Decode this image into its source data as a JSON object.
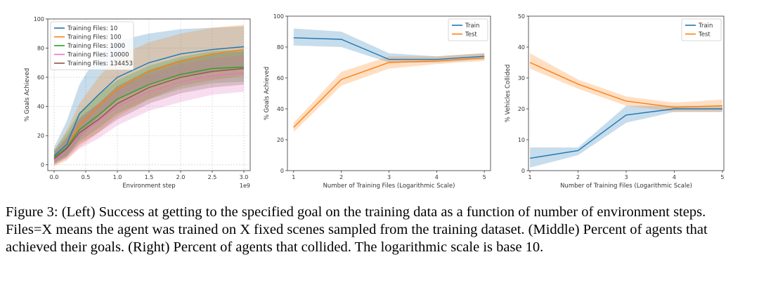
{
  "chart_data": [
    {
      "id": "left",
      "type": "line",
      "title": "",
      "xlabel": "Environment step",
      "ylabel": "% Goals Achieved",
      "xlim": [
        -0.1,
        3.1
      ],
      "ylim": [
        -4,
        100
      ],
      "xticks": [
        0.0,
        0.5,
        1.0,
        1.5,
        2.0,
        2.5,
        3.0
      ],
      "xtick_labels": [
        "0.0",
        "0.5",
        "1.0",
        "1.5",
        "2.0",
        "2.5",
        "3.0"
      ],
      "yticks": [
        0,
        20,
        40,
        60,
        80,
        100
      ],
      "ytick_labels": [
        "0",
        "20",
        "40",
        "60",
        "80",
        "100"
      ],
      "x_multiplier": "1e9",
      "grid": true,
      "legend_position": "top-left",
      "series": [
        {
          "name": "Training Files: 10",
          "color": "#1f77b4",
          "x": [
            0.0,
            0.2,
            0.4,
            0.7,
            1.0,
            1.5,
            2.0,
            2.5,
            3.0
          ],
          "values": [
            6,
            14,
            35,
            48,
            60,
            70,
            76,
            79,
            81
          ],
          "lower": [
            2,
            6,
            18,
            33,
            45,
            55,
            61,
            64,
            66
          ],
          "upper": [
            12,
            30,
            55,
            76,
            85,
            90,
            93,
            94,
            95
          ]
        },
        {
          "name": "Training Files: 100",
          "color": "#ff7f0e",
          "x": [
            0.0,
            0.2,
            0.4,
            0.7,
            1.0,
            1.5,
            2.0,
            2.5,
            3.0
          ],
          "values": [
            4,
            12,
            27,
            40,
            52,
            64,
            71,
            76,
            79
          ],
          "lower": [
            -1,
            3,
            12,
            22,
            33,
            45,
            54,
            58,
            61
          ],
          "upper": [
            10,
            24,
            42,
            60,
            74,
            84,
            90,
            94,
            96
          ]
        },
        {
          "name": "Training Files: 1000",
          "color": "#2ca02c",
          "x": [
            0.0,
            0.2,
            0.4,
            0.7,
            1.0,
            1.5,
            2.0,
            2.5,
            3.0
          ],
          "values": [
            5,
            12,
            24,
            34,
            45,
            55,
            62,
            66,
            67
          ],
          "lower": [
            1,
            6,
            16,
            25,
            35,
            45,
            52,
            56,
            57
          ],
          "upper": [
            10,
            22,
            36,
            48,
            58,
            68,
            74,
            78,
            79
          ]
        },
        {
          "name": "Training Files: 10000",
          "color": "#e377c2",
          "x": [
            0.0,
            0.2,
            0.4,
            0.7,
            1.0,
            1.5,
            2.0,
            2.5,
            3.0
          ],
          "values": [
            3,
            10,
            20,
            30,
            40,
            50,
            57,
            61,
            63
          ],
          "lower": [
            0,
            4,
            11,
            18,
            27,
            37,
            43,
            48,
            50
          ],
          "upper": [
            8,
            18,
            31,
            42,
            53,
            62,
            69,
            73,
            75
          ]
        },
        {
          "name": "Training Files: 134453",
          "color": "#8c564b",
          "x": [
            0.0,
            0.2,
            0.4,
            0.7,
            1.0,
            1.5,
            2.0,
            2.5,
            3.0
          ],
          "values": [
            4,
            11,
            22,
            31,
            42,
            53,
            60,
            64,
            66
          ],
          "lower": [
            0,
            5,
            14,
            22,
            31,
            42,
            49,
            53,
            55
          ],
          "upper": [
            9,
            19,
            32,
            42,
            54,
            65,
            72,
            76,
            78
          ]
        }
      ]
    },
    {
      "id": "middle",
      "type": "line",
      "title": "",
      "xlabel": "Number of Training Files (Logarithmic Scale)",
      "ylabel": "% Goals Achieved",
      "xlim": [
        0.87,
        5.13
      ],
      "ylim": [
        0,
        100
      ],
      "xticks": [
        1,
        2,
        3,
        4,
        5
      ],
      "xtick_labels": [
        "1",
        "2",
        "3",
        "4",
        "5"
      ],
      "yticks": [
        0,
        20,
        40,
        60,
        80,
        100
      ],
      "ytick_labels": [
        "0",
        "20",
        "40",
        "60",
        "80",
        "100"
      ],
      "grid": false,
      "legend_position": "top-right",
      "series": [
        {
          "name": "Train",
          "color": "#1f77b4",
          "x": [
            1,
            2,
            3,
            4,
            5
          ],
          "values": [
            86,
            85,
            72,
            72,
            74
          ],
          "lower": [
            81,
            80,
            70,
            70,
            72
          ],
          "upper": [
            92,
            90,
            76,
            74,
            76
          ]
        },
        {
          "name": "Test",
          "color": "#ff7f0e",
          "x": [
            1,
            2,
            3,
            4,
            5
          ],
          "values": [
            28,
            59,
            70,
            71,
            73
          ],
          "lower": [
            25,
            55,
            66,
            69,
            71
          ],
          "upper": [
            31,
            64,
            74,
            74,
            76
          ]
        }
      ]
    },
    {
      "id": "right",
      "type": "line",
      "title": "",
      "xlabel": "Number of Training Files (Logarithmic Scale)",
      "ylabel": "% Vehicles Collided",
      "xlim": [
        0.97,
        5.03
      ],
      "ylim": [
        0,
        50
      ],
      "xticks": [
        1,
        2,
        3,
        4,
        5
      ],
      "xtick_labels": [
        "1",
        "2",
        "3",
        "4",
        "5"
      ],
      "yticks": [
        0,
        10,
        20,
        30,
        40,
        50
      ],
      "ytick_labels": [
        "0",
        "10",
        "20",
        "30",
        "40",
        "50"
      ],
      "grid": false,
      "legend_position": "top-right",
      "series": [
        {
          "name": "Train",
          "color": "#1f77b4",
          "x": [
            1,
            2,
            3,
            4,
            5
          ],
          "values": [
            4,
            6.5,
            18,
            20,
            20
          ],
          "lower": [
            1,
            5,
            15.5,
            19,
            19
          ],
          "upper": [
            7.5,
            7.5,
            21,
            21,
            21
          ]
        },
        {
          "name": "Test",
          "color": "#ff7f0e",
          "x": [
            1,
            2,
            3,
            4,
            5
          ],
          "values": [
            35,
            28,
            22.5,
            20.5,
            21
          ],
          "lower": [
            33,
            26.5,
            21,
            19,
            19
          ],
          "upper": [
            38,
            29.5,
            24,
            22,
            23
          ]
        }
      ]
    }
  ],
  "caption": "Figure 3: (Left) Success at getting to the specified goal on the training data as a function of number of environment steps. Files=X means the agent was trained on X fixed scenes sampled from the training dataset. (Middle) Percent of agents that achieved their goals. (Right) Percent of agents that collided. The logarithmic scale is base 10."
}
